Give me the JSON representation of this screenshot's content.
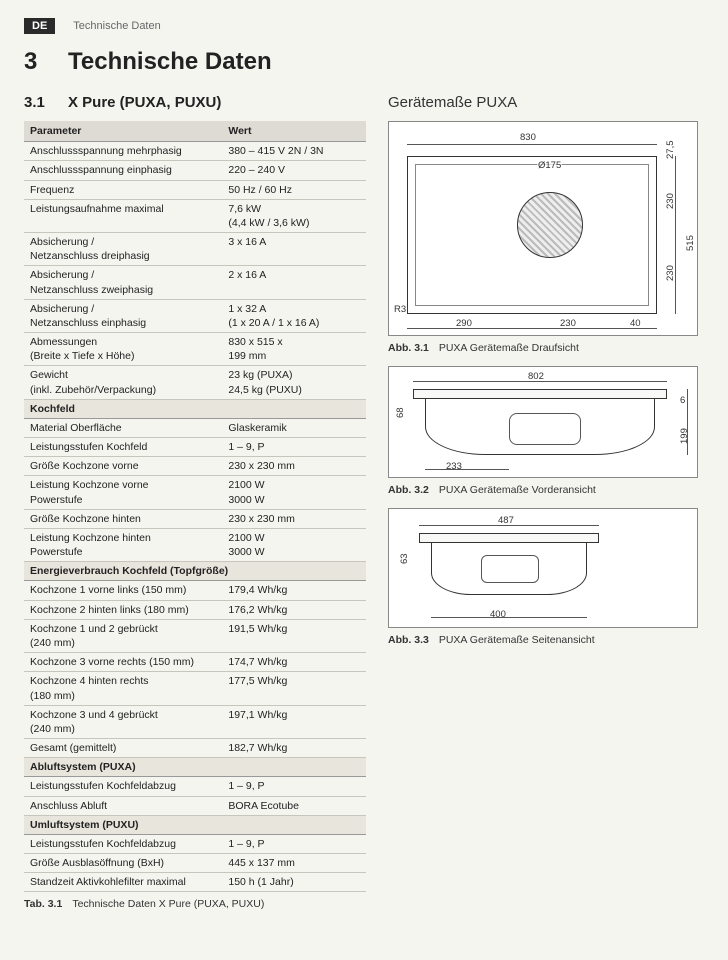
{
  "header": {
    "lang": "DE",
    "running": "Technische Daten"
  },
  "section": {
    "num": "3",
    "title": "Technische Daten"
  },
  "subsection": {
    "num": "3.1",
    "title": "X Pure (PUXA, PUXU)"
  },
  "right_title": "Gerätemaße PUXA",
  "table": {
    "head_param": "Parameter",
    "head_value": "Wert",
    "rows": [
      {
        "p": "Anschlussspannung mehrphasig",
        "v": "380 – 415 V 2N / 3N"
      },
      {
        "p": "Anschlussspannung einphasig",
        "v": "220 – 240 V"
      },
      {
        "p": "Frequenz",
        "v": "50 Hz / 60 Hz"
      },
      {
        "p": "Leistungsaufnahme maximal",
        "v": "7,6 kW\n(4,4 kW / 3,6 kW)"
      },
      {
        "p": "Absicherung /\nNetzanschluss dreiphasig",
        "v": "3 x 16 A"
      },
      {
        "p": "Absicherung /\nNetzanschluss zweiphasig",
        "v": "2 x 16 A"
      },
      {
        "p": "Absicherung /\nNetzanschluss einphasig",
        "v": "1 x 32 A\n(1 x 20 A / 1 x 16 A)"
      },
      {
        "p": "Abmessungen\n(Breite x Tiefe x Höhe)",
        "v": "830 x 515 x\n199 mm"
      },
      {
        "p": "Gewicht\n(inkl. Zubehör/Verpackung)",
        "v": "23 kg (PUXA)\n24,5 kg (PUXU)"
      }
    ],
    "section2": "Kochfeld",
    "rows2": [
      {
        "p": "Material Oberfläche",
        "v": "Glaskeramik"
      },
      {
        "p": "Leistungsstufen Kochfeld",
        "v": "1 – 9, P"
      },
      {
        "p": "Größe Kochzone vorne",
        "v": "230 x 230 mm"
      },
      {
        "p": "Leistung Kochzone vorne\nPowerstufe",
        "v": "2100 W\n3000 W"
      },
      {
        "p": "Größe Kochzone hinten",
        "v": "230 x 230 mm"
      },
      {
        "p": "Leistung Kochzone hinten\nPowerstufe",
        "v": "2100 W\n3000 W"
      }
    ],
    "section3": "Energieverbrauch Kochfeld (Topfgröße)",
    "rows3": [
      {
        "p": "Kochzone 1 vorne links (150 mm)",
        "v": "179,4 Wh/kg"
      },
      {
        "p": "Kochzone 2 hinten links (180 mm)",
        "v": "176,2 Wh/kg"
      },
      {
        "p": "Kochzone 1 und 2 gebrückt\n(240 mm)",
        "v": "191,5 Wh/kg"
      },
      {
        "p": "Kochzone 3 vorne rechts (150 mm)",
        "v": "174,7 Wh/kg"
      },
      {
        "p": "Kochzone 4 hinten rechts\n(180 mm)",
        "v": "177,5 Wh/kg"
      },
      {
        "p": "Kochzone 3 und 4 gebrückt\n(240 mm)",
        "v": "197,1 Wh/kg"
      },
      {
        "p": "Gesamt (gemittelt)",
        "v": "182,7 Wh/kg"
      }
    ],
    "section4": "Abluftsystem (PUXA)",
    "rows4": [
      {
        "p": "Leistungsstufen Kochfeldabzug",
        "v": "1 – 9, P"
      },
      {
        "p": "Anschluss Abluft",
        "v": "BORA Ecotube"
      }
    ],
    "section5": "Umluftsystem (PUXU)",
    "rows5": [
      {
        "p": "Leistungsstufen Kochfeldabzug",
        "v": "1 – 9, P"
      },
      {
        "p": "Größe Ausblasöffnung (BxH)",
        "v": "445 x 137 mm"
      },
      {
        "p": "Standzeit Aktivkohlefilter maximal",
        "v": "150 h (1 Jahr)"
      }
    ]
  },
  "tab_caption": {
    "abbr": "Tab. 3.1",
    "text": "Technische Daten X Pure (PUXA, PUXU)"
  },
  "figures": {
    "f1": {
      "dims": {
        "w830": "830",
        "d175": "Ø175",
        "r3": "R3",
        "d290": "290",
        "d230a": "230",
        "d40": "40",
        "t27": "27,5",
        "t230a": "230",
        "t230b": "230",
        "t515": "515"
      },
      "caption_abbr": "Abb. 3.1",
      "caption_text": "PUXA Gerätemaße Draufsicht"
    },
    "f2": {
      "dims": {
        "w802": "802",
        "h68": "68",
        "d233": "233",
        "h6": "6",
        "h199": "199"
      },
      "caption_abbr": "Abb. 3.2",
      "caption_text": "PUXA Gerätemaße Vorderansicht"
    },
    "f3": {
      "dims": {
        "w487": "487",
        "h63": "63",
        "d400": "400"
      },
      "caption_abbr": "Abb. 3.3",
      "caption_text": "PUXA Gerätemaße Seitenansicht"
    }
  }
}
